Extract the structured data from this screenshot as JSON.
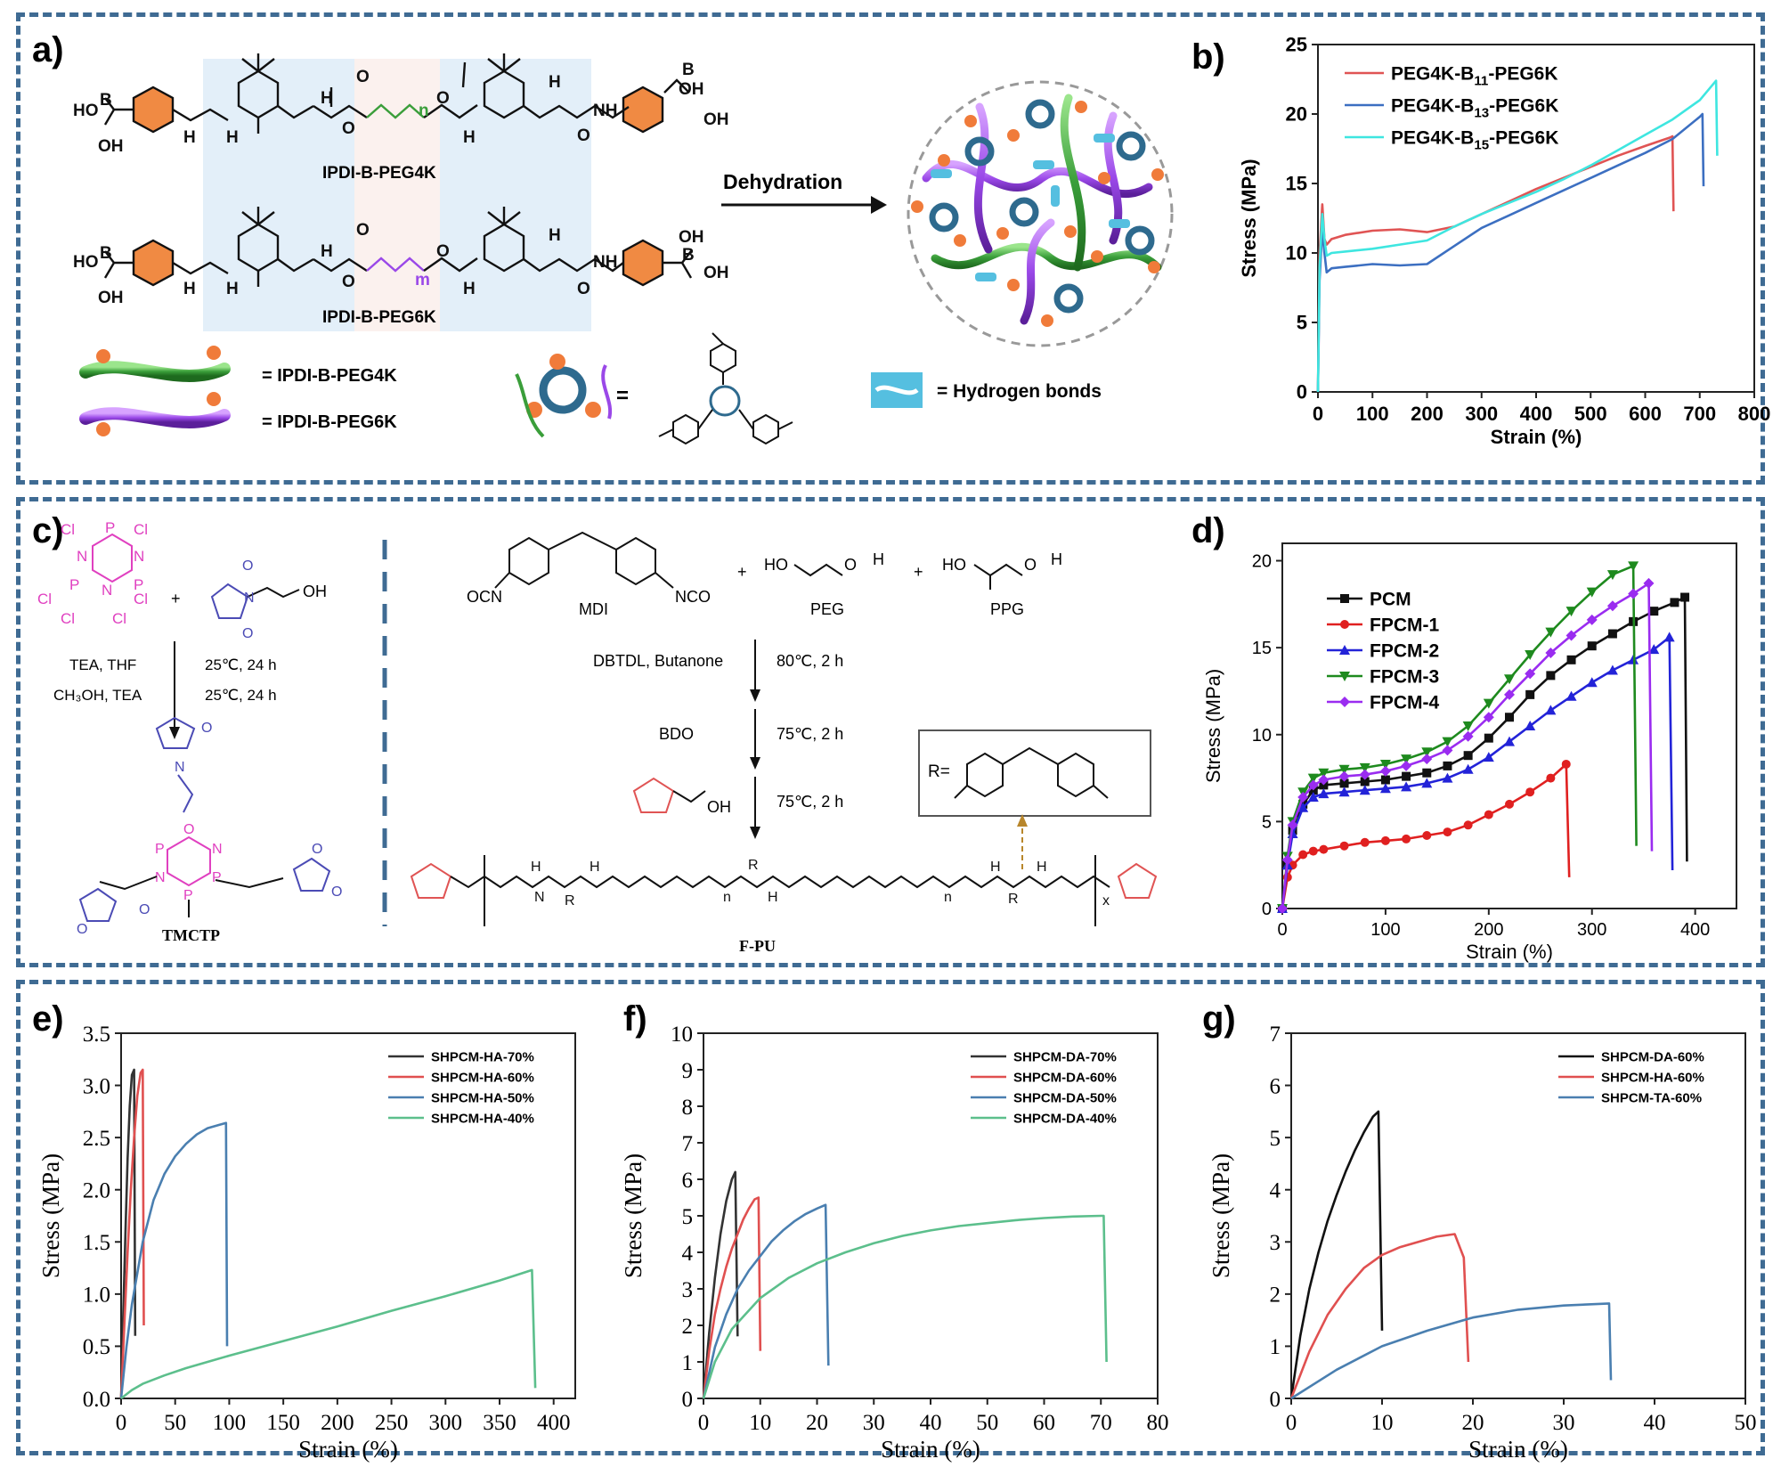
{
  "panel_labels": {
    "a": "a)",
    "b": "b)",
    "c": "c)",
    "d": "d)",
    "e": "e)",
    "f": "f)",
    "g": "g)"
  },
  "schemes": {
    "a": {
      "mol1": "IPDI-B-PEG4K",
      "mol2": "IPDI-B-PEG6K",
      "arrow": "Dehydration",
      "legend_peg4k": "= IPDI-B-PEG4K",
      "legend_peg6k": "= IPDI-B-PEG6K",
      "legend_boroxine_eq": "=",
      "legend_hbond": "=  Hydrogen bonds",
      "atoms": {
        "ho": "HO",
        "oh": "OH",
        "b": "B",
        "h": "H",
        "n": "N",
        "nh": "NH",
        "o": "O",
        "n_sub": "n",
        "m_sub": "m"
      }
    },
    "c": {
      "cl": "Cl",
      "p": "P",
      "n": "N",
      "oh": "OH",
      "o": "O",
      "cond1a": "TEA, THF",
      "cond1b": "25℃,  24 h",
      "cond2a": "CH₃OH, TEA",
      "cond2b": "25℃,  24 h",
      "product": "TMCTP",
      "ocn": "OCN",
      "nco": "NCO",
      "mdi": "MDI",
      "plus": "+",
      "peg_ho": "HO",
      "peg_h": "H",
      "peg": "PEG",
      "ppg": "PPG",
      "step1a": "DBTDL, Butanone",
      "step1b": "80℃,  2 h",
      "step2a": "BDO",
      "step2b": "75℃,  2 h",
      "step3b": "75℃,  2 h",
      "r_label": "R=",
      "fpu": "F-PU",
      "x_sub": "x",
      "n_sub": "n",
      "r": "R",
      "h": "H"
    }
  },
  "colors": {
    "frame": "#3f6b93",
    "red": "#e05454",
    "blue": "#3c6fc1",
    "cyan": "#3ee6e0",
    "green": "#3a9e3a",
    "violet": "#b03cf0",
    "black": "#111111",
    "pink": "#e040c0",
    "indigo": "#4b4bb5",
    "orange": "#f07b3a",
    "boroxine": "#2e6a8e",
    "hbond": "#55bfe0"
  },
  "chart_data": [
    {
      "id": "b",
      "type": "line",
      "title": "",
      "xlabel": "Strain (%)",
      "ylabel": "Stress (MPa)",
      "xlim": [
        0,
        800
      ],
      "ylim": [
        0,
        25
      ],
      "xticks": [
        0,
        100,
        200,
        300,
        400,
        500,
        600,
        700,
        800
      ],
      "yticks": [
        0,
        5,
        10,
        15,
        20,
        25
      ],
      "legend_position": "top-left",
      "series": [
        {
          "name": "PEG4K-B11-PEG6K",
          "label_base": "PEG4K-B",
          "label_sub": "11",
          "label_tail": "-PEG6K",
          "color": "#e05454",
          "marker": "none",
          "x": [
            0,
            3,
            8,
            12,
            16,
            25,
            50,
            100,
            150,
            200,
            250,
            300,
            350,
            400,
            450,
            500,
            550,
            600,
            645,
            650,
            652
          ],
          "y": [
            0,
            10,
            13.5,
            11,
            10.6,
            11.0,
            11.3,
            11.6,
            11.7,
            11.5,
            11.9,
            12.8,
            13.7,
            14.6,
            15.4,
            16.2,
            17.0,
            17.7,
            18.3,
            18.4,
            13.0
          ]
        },
        {
          "name": "PEG4K-B13-PEG6K",
          "label_base": "PEG4K-B",
          "label_sub": "13",
          "label_tail": "-PEG6K",
          "color": "#3c6fc1",
          "marker": "none",
          "x": [
            0,
            3,
            8,
            12,
            16,
            25,
            50,
            100,
            150,
            200,
            250,
            300,
            350,
            400,
            450,
            500,
            550,
            600,
            650,
            700,
            705,
            707
          ],
          "y": [
            0,
            8,
            11.8,
            10,
            8.6,
            8.9,
            9.0,
            9.2,
            9.1,
            9.2,
            10.5,
            11.8,
            12.7,
            13.6,
            14.5,
            15.4,
            16.3,
            17.2,
            18.2,
            19.8,
            20.0,
            14.8
          ]
        },
        {
          "name": "PEG4K-B15-PEG6K",
          "label_base": "PEG4K-B",
          "label_sub": "15",
          "label_tail": "-PEG6K",
          "color": "#3ee6e0",
          "marker": "none",
          "x": [
            0,
            3,
            8,
            12,
            16,
            25,
            50,
            100,
            150,
            200,
            250,
            300,
            350,
            400,
            450,
            500,
            550,
            600,
            650,
            700,
            730,
            732
          ],
          "y": [
            0,
            9,
            12.8,
            11,
            9.8,
            10.0,
            10.1,
            10.3,
            10.6,
            10.9,
            11.9,
            12.8,
            13.6,
            14.4,
            15.3,
            16.3,
            17.4,
            18.5,
            19.6,
            21.0,
            22.4,
            17.0
          ]
        }
      ]
    },
    {
      "id": "d",
      "type": "line",
      "title": "",
      "xlabel": "Strain (%)",
      "ylabel": "Stress (MPa)",
      "xlim": [
        0,
        440
      ],
      "ylim": [
        0,
        21
      ],
      "xticks": [
        0,
        100,
        200,
        300,
        400
      ],
      "yticks": [
        0,
        5,
        10,
        15,
        20
      ],
      "legend_position": "top-left",
      "series": [
        {
          "name": "PCM",
          "color": "#111111",
          "marker": "square",
          "x": [
            0,
            5,
            10,
            20,
            30,
            40,
            60,
            80,
            100,
            120,
            140,
            160,
            180,
            200,
            220,
            240,
            260,
            280,
            300,
            320,
            340,
            360,
            380,
            390,
            392
          ],
          "y": [
            0,
            2.5,
            4.5,
            6.0,
            6.8,
            7.1,
            7.2,
            7.3,
            7.4,
            7.6,
            7.8,
            8.2,
            8.8,
            9.8,
            11.0,
            12.3,
            13.4,
            14.3,
            15.1,
            15.8,
            16.5,
            17.1,
            17.6,
            17.9,
            2.7
          ]
        },
        {
          "name": "FPCM-1",
          "color": "#e02020",
          "marker": "circle",
          "x": [
            0,
            5,
            10,
            20,
            30,
            40,
            60,
            80,
            100,
            120,
            140,
            160,
            180,
            200,
            220,
            240,
            260,
            275,
            278
          ],
          "y": [
            0,
            1.8,
            2.5,
            3.1,
            3.3,
            3.4,
            3.6,
            3.8,
            3.9,
            4.0,
            4.2,
            4.4,
            4.8,
            5.4,
            6.0,
            6.7,
            7.5,
            8.3,
            1.8
          ]
        },
        {
          "name": "FPCM-2",
          "color": "#2323d8",
          "marker": "triangle-up",
          "x": [
            0,
            5,
            10,
            20,
            30,
            40,
            60,
            80,
            100,
            120,
            140,
            160,
            180,
            200,
            220,
            240,
            260,
            280,
            300,
            320,
            340,
            360,
            375,
            378
          ],
          "y": [
            0,
            2.5,
            4.3,
            5.8,
            6.4,
            6.6,
            6.7,
            6.8,
            6.9,
            7.0,
            7.2,
            7.5,
            8.0,
            8.7,
            9.6,
            10.5,
            11.4,
            12.2,
            13.0,
            13.7,
            14.3,
            14.9,
            15.6,
            2.2
          ]
        },
        {
          "name": "FPCM-3",
          "color": "#1e8a1e",
          "marker": "triangle-down",
          "x": [
            0,
            5,
            10,
            20,
            30,
            40,
            60,
            80,
            100,
            120,
            140,
            160,
            180,
            200,
            220,
            240,
            260,
            280,
            300,
            320,
            340,
            343
          ],
          "y": [
            0,
            3.0,
            5.0,
            6.7,
            7.5,
            7.8,
            8.0,
            8.1,
            8.3,
            8.6,
            9.0,
            9.6,
            10.5,
            11.8,
            13.2,
            14.6,
            15.9,
            17.1,
            18.2,
            19.2,
            19.7,
            3.6
          ]
        },
        {
          "name": "FPCM-4",
          "color": "#9a2cf0",
          "marker": "diamond",
          "x": [
            0,
            5,
            10,
            20,
            30,
            40,
            60,
            80,
            100,
            120,
            140,
            160,
            180,
            200,
            220,
            240,
            260,
            280,
            300,
            320,
            340,
            355,
            358
          ],
          "y": [
            0,
            2.8,
            4.8,
            6.4,
            7.1,
            7.4,
            7.6,
            7.7,
            7.9,
            8.2,
            8.6,
            9.1,
            9.9,
            11.0,
            12.3,
            13.5,
            14.7,
            15.7,
            16.6,
            17.4,
            18.1,
            18.7,
            3.3
          ]
        }
      ]
    },
    {
      "id": "e",
      "type": "line",
      "title": "",
      "xlabel": "Strain (%)",
      "ylabel": "Stress (MPa)",
      "xlim": [
        0,
        420
      ],
      "ylim": [
        0,
        3.5
      ],
      "xticks": [
        0,
        50,
        100,
        150,
        200,
        250,
        300,
        350,
        400
      ],
      "xtick_labels": [
        "0",
        "50",
        "100",
        "150",
        "200",
        "250",
        "300",
        "350",
        "400"
      ],
      "yticks": [
        0,
        0.5,
        1.0,
        1.5,
        2.0,
        2.5,
        3.0,
        3.5
      ],
      "ytick_labels": [
        "0.0",
        "0.5",
        "1.0",
        "1.5",
        "2.0",
        "2.5",
        "3.0",
        "3.5"
      ],
      "legend_position": "top-right",
      "series": [
        {
          "name": "SHPCM-HA-70%",
          "color": "#333333",
          "marker": "none",
          "x": [
            0,
            2,
            4,
            6,
            8,
            10,
            12,
            13
          ],
          "y": [
            0,
            0.8,
            1.6,
            2.3,
            2.8,
            3.1,
            3.15,
            0.6
          ]
        },
        {
          "name": "SHPCM-HA-60%",
          "color": "#e05050",
          "marker": "none",
          "x": [
            0,
            3,
            6,
            9,
            12,
            15,
            18,
            20,
            21
          ],
          "y": [
            0,
            0.7,
            1.4,
            2.0,
            2.5,
            2.9,
            3.12,
            3.15,
            0.7
          ]
        },
        {
          "name": "SHPCM-HA-50%",
          "color": "#4a7fb0",
          "marker": "none",
          "x": [
            0,
            5,
            10,
            20,
            30,
            40,
            50,
            60,
            70,
            80,
            90,
            97,
            98
          ],
          "y": [
            0,
            0.5,
            0.9,
            1.5,
            1.9,
            2.15,
            2.32,
            2.44,
            2.53,
            2.59,
            2.62,
            2.64,
            0.5
          ]
        },
        {
          "name": "SHPCM-HA-40%",
          "color": "#5cbf8c",
          "marker": "none",
          "x": [
            0,
            10,
            20,
            40,
            60,
            80,
            100,
            150,
            200,
            250,
            300,
            350,
            380,
            383
          ],
          "y": [
            0,
            0.08,
            0.14,
            0.22,
            0.29,
            0.35,
            0.41,
            0.55,
            0.69,
            0.84,
            0.98,
            1.13,
            1.23,
            0.1
          ]
        }
      ]
    },
    {
      "id": "f",
      "type": "line",
      "title": "",
      "xlabel": "Strain (%)",
      "ylabel": "Stress (MPa)",
      "xlim": [
        0,
        80
      ],
      "ylim": [
        0,
        10
      ],
      "xticks": [
        0,
        10,
        20,
        30,
        40,
        50,
        60,
        70,
        80
      ],
      "yticks": [
        0,
        1,
        2,
        3,
        4,
        5,
        6,
        7,
        8,
        9,
        10
      ],
      "legend_position": "top-right",
      "series": [
        {
          "name": "SHPCM-DA-70%",
          "color": "#333333",
          "marker": "none",
          "x": [
            0,
            1,
            2,
            3,
            4,
            5,
            5.6,
            6
          ],
          "y": [
            0,
            1.8,
            3.3,
            4.5,
            5.4,
            6.0,
            6.2,
            1.7
          ]
        },
        {
          "name": "SHPCM-DA-60%",
          "color": "#e05050",
          "marker": "none",
          "x": [
            0,
            1,
            2,
            3,
            4,
            5,
            6,
            7,
            8,
            9,
            9.7,
            10
          ],
          "y": [
            0,
            1.3,
            2.3,
            3.0,
            3.6,
            4.1,
            4.5,
            4.9,
            5.2,
            5.45,
            5.5,
            1.3
          ]
        },
        {
          "name": "SHPCM-DA-50%",
          "color": "#4a7fb0",
          "marker": "none",
          "x": [
            0,
            2,
            4,
            6,
            8,
            10,
            12,
            14,
            16,
            18,
            20,
            21.5,
            22
          ],
          "y": [
            0,
            1.4,
            2.3,
            3.0,
            3.5,
            3.9,
            4.3,
            4.6,
            4.85,
            5.05,
            5.2,
            5.3,
            0.9
          ]
        },
        {
          "name": "SHPCM-DA-40%",
          "color": "#5cbf8c",
          "marker": "none",
          "x": [
            0,
            2,
            5,
            10,
            15,
            20,
            25,
            30,
            35,
            40,
            45,
            50,
            55,
            60,
            65,
            70,
            70.5,
            71
          ],
          "y": [
            0,
            1.0,
            1.9,
            2.75,
            3.3,
            3.7,
            4.0,
            4.25,
            4.45,
            4.6,
            4.72,
            4.8,
            4.88,
            4.94,
            4.98,
            5.0,
            5.0,
            1.0
          ]
        }
      ]
    },
    {
      "id": "g",
      "type": "line",
      "title": "",
      "xlabel": "Strain (%)",
      "ylabel": "Stress (MPa)",
      "xlim": [
        0,
        50
      ],
      "ylim": [
        0,
        7
      ],
      "xticks": [
        0,
        10,
        20,
        30,
        40,
        50
      ],
      "yticks": [
        0,
        1,
        2,
        3,
        4,
        5,
        6,
        7
      ],
      "legend_position": "top-right",
      "series": [
        {
          "name": "SHPCM-DA-60%",
          "color": "#111111",
          "marker": "none",
          "x": [
            0,
            1,
            2,
            3,
            4,
            5,
            6,
            7,
            8,
            9,
            9.6,
            10
          ],
          "y": [
            0,
            1.2,
            2.1,
            2.8,
            3.4,
            3.9,
            4.35,
            4.75,
            5.1,
            5.4,
            5.5,
            1.3
          ]
        },
        {
          "name": "SHPCM-HA-60%",
          "color": "#e05050",
          "marker": "none",
          "x": [
            0,
            2,
            4,
            6,
            8,
            10,
            12,
            14,
            16,
            18,
            19,
            19.5
          ],
          "y": [
            0,
            0.9,
            1.6,
            2.1,
            2.5,
            2.75,
            2.9,
            3.0,
            3.1,
            3.15,
            2.7,
            0.7
          ]
        },
        {
          "name": "SHPCM-TA-60%",
          "color": "#4a7fb0",
          "marker": "none",
          "x": [
            0,
            5,
            10,
            15,
            20,
            25,
            30,
            35,
            35.2
          ],
          "y": [
            0,
            0.55,
            1.0,
            1.3,
            1.55,
            1.7,
            1.78,
            1.82,
            0.35
          ]
        }
      ]
    }
  ]
}
